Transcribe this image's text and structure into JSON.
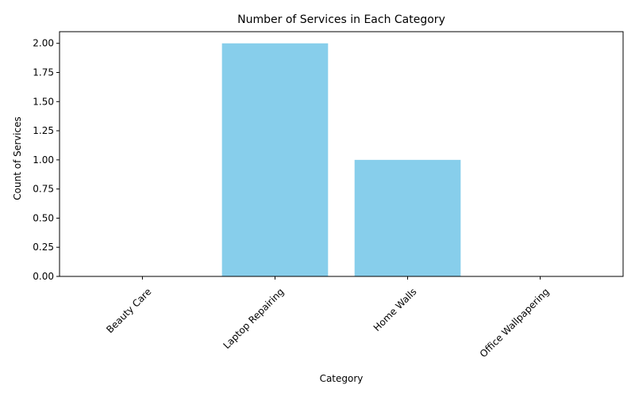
{
  "chart_data": {
    "type": "bar",
    "title": "Number of Services in Each Category",
    "xlabel": "Category",
    "ylabel": "Count of Services",
    "categories": [
      "Beauty Care",
      "Laptop Repairing",
      "Home Walls",
      "Office Wallpapering"
    ],
    "values": [
      0,
      2,
      1,
      0
    ],
    "ylim": [
      0,
      2.1
    ],
    "yticks": [
      "0.00",
      "0.25",
      "0.50",
      "0.75",
      "1.00",
      "1.25",
      "1.50",
      "1.75",
      "2.00"
    ],
    "bar_color": "#87CEEB",
    "grid": false,
    "legend": "none"
  }
}
